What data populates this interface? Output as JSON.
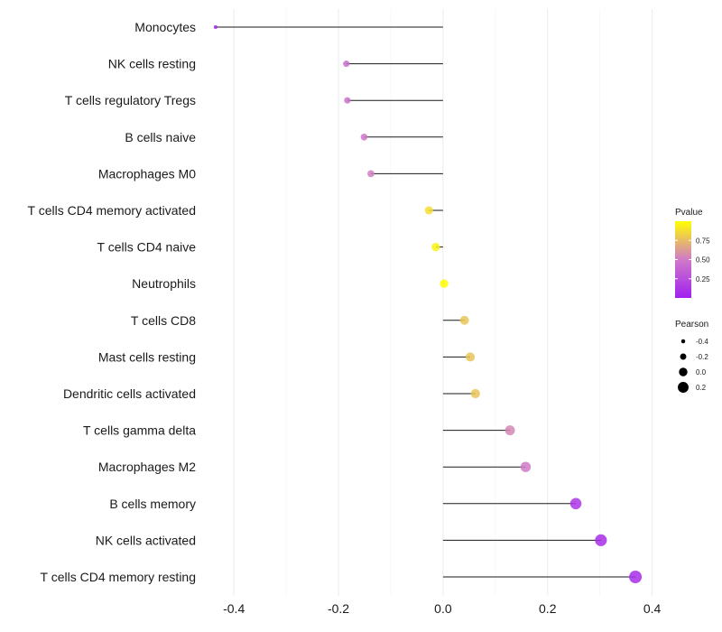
{
  "chart_data": {
    "type": "lollipop",
    "title": "",
    "xlabel": "",
    "ylabel": "",
    "xlim": [
      -0.44,
      0.43
    ],
    "xticks": [
      -0.4,
      -0.2,
      0.0,
      0.2,
      0.4
    ],
    "xtick_labels": [
      "-0.4",
      "-0.2",
      "0.0",
      "0.2",
      "0.4"
    ],
    "grid": "vertical",
    "categories": [
      "Monocytes",
      "NK cells resting",
      "T cells regulatory  Tregs",
      "B cells naive",
      "Macrophages M0",
      "T cells CD4 memory activated",
      "T cells CD4 naive",
      "Neutrophils",
      "T cells CD8",
      "Mast cells resting",
      "Dendritic cells activated",
      "T cells gamma delta",
      "Macrophages M2",
      "B cells memory",
      "NK cells activated",
      "T cells CD4 memory resting"
    ],
    "values": [
      -0.435,
      -0.185,
      -0.183,
      -0.151,
      -0.138,
      -0.027,
      -0.014,
      0.002,
      0.041,
      0.052,
      0.062,
      0.128,
      0.158,
      0.254,
      0.302,
      0.368
    ],
    "pvalues": [
      0.01,
      0.42,
      0.45,
      0.48,
      0.52,
      0.88,
      0.95,
      0.99,
      0.78,
      0.78,
      0.78,
      0.55,
      0.5,
      0.12,
      0.08,
      0.08
    ],
    "color_legend": {
      "title": "Pvalue",
      "ticks": [
        0.25,
        0.5,
        0.75
      ],
      "tick_labels": [
        "0.25",
        "0.50",
        "0.75"
      ],
      "range": [
        0.0,
        1.0
      ],
      "colors": [
        "#a020f0",
        "#d07ac8",
        "#ffff00"
      ]
    },
    "size_legend": {
      "title": "Pearson",
      "values": [
        -0.4,
        -0.2,
        0.0,
        0.2
      ],
      "labels": [
        "-0.4",
        "-0.2",
        "0.0",
        "0.2"
      ]
    }
  }
}
